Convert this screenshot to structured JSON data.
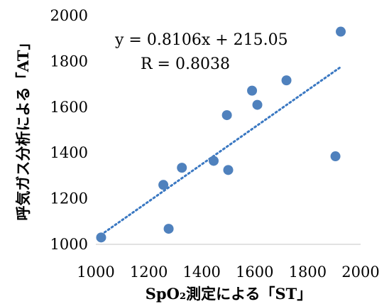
{
  "chart_data": {
    "type": "scatter",
    "title": "",
    "xlabel": "SpO₂測定による「ST」",
    "ylabel": "呼気ガス分析による「AT」",
    "xlim": [
      1000,
      2000
    ],
    "ylim": [
      1000,
      2000
    ],
    "xticks": [
      1000,
      1200,
      1400,
      1600,
      1800,
      2000
    ],
    "yticks": [
      1000,
      1200,
      1400,
      1600,
      1800,
      2000
    ],
    "points": [
      {
        "x": 1020,
        "y": 1030
      },
      {
        "x": 1255,
        "y": 1260
      },
      {
        "x": 1275,
        "y": 1068
      },
      {
        "x": 1325,
        "y": 1335
      },
      {
        "x": 1445,
        "y": 1365
      },
      {
        "x": 1495,
        "y": 1565
      },
      {
        "x": 1500,
        "y": 1325
      },
      {
        "x": 1590,
        "y": 1672
      },
      {
        "x": 1610,
        "y": 1610
      },
      {
        "x": 1720,
        "y": 1717
      },
      {
        "x": 1905,
        "y": 1385
      },
      {
        "x": 1925,
        "y": 1930
      }
    ],
    "trendline": {
      "slope": 0.8106,
      "intercept": 215.05,
      "x_start": 1020,
      "x_end": 1925,
      "style": "dotted"
    },
    "annotations": {
      "equation": "y = 0.8106x + 215.05",
      "r_value": "R = 0.8038"
    },
    "grid": false,
    "legend": "none",
    "colors": {
      "marker": "#4f81bd",
      "trendline": "#3a78c2"
    }
  }
}
